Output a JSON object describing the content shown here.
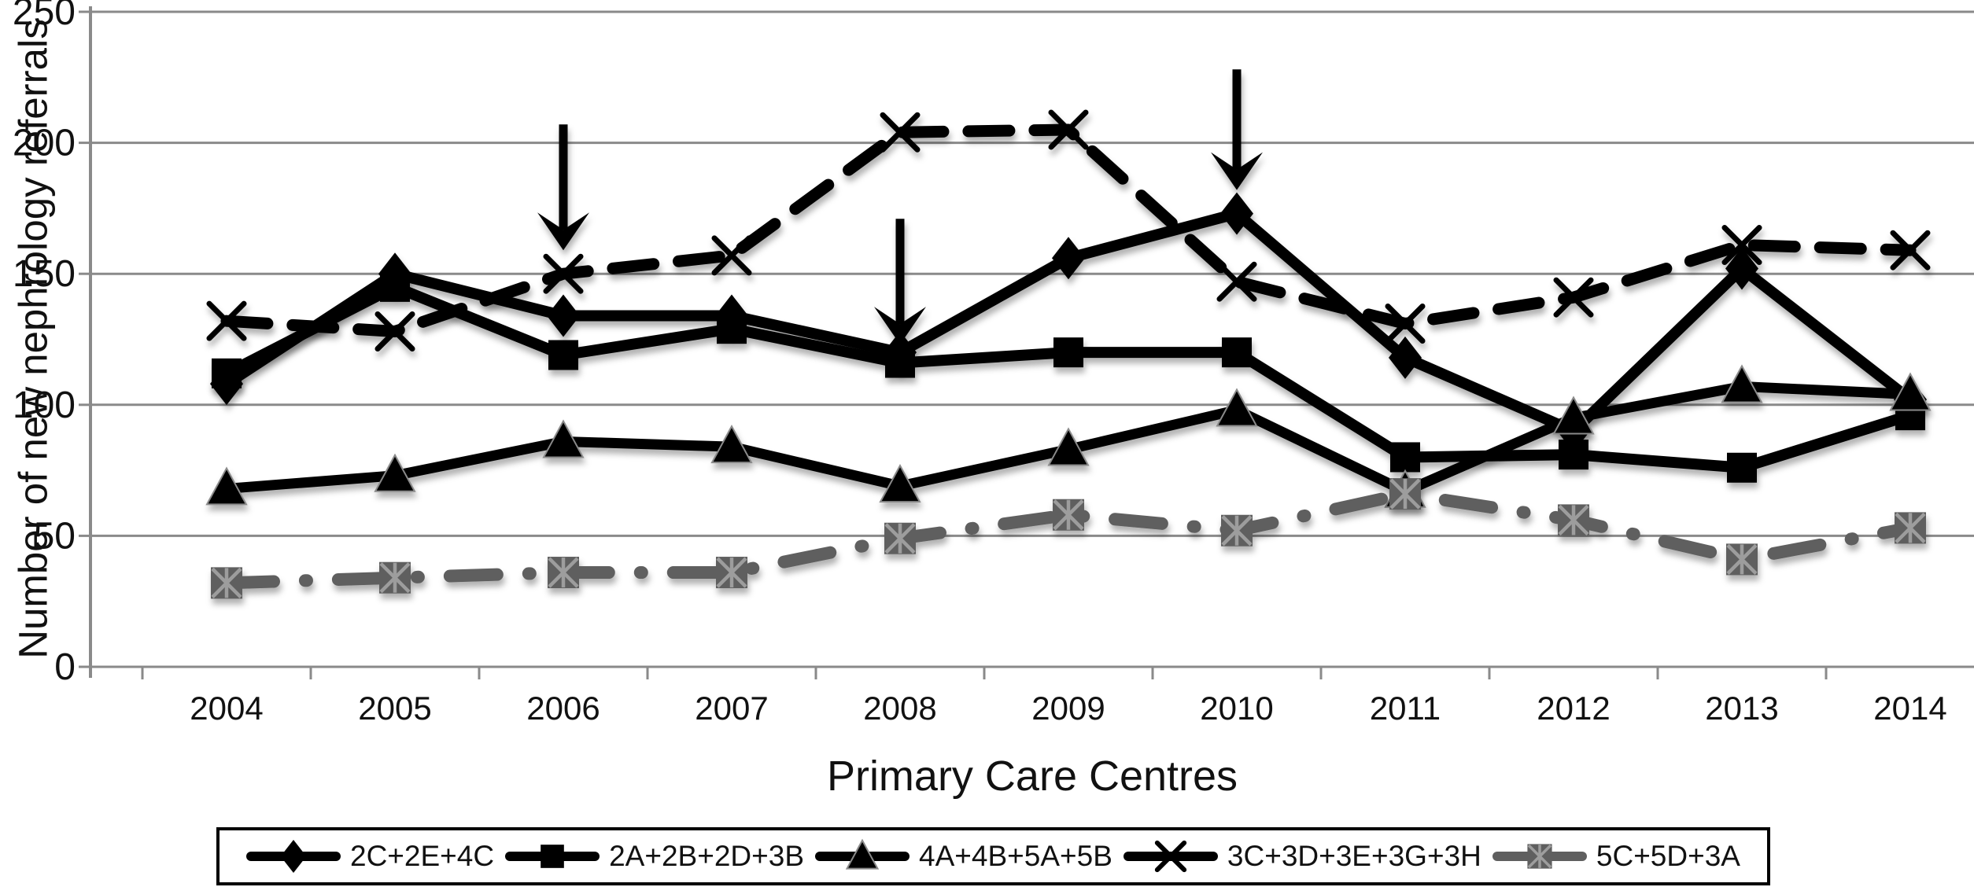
{
  "figure": {
    "background": "#ffffff"
  },
  "style": {
    "grid_color": "#8a8a8a",
    "axis_color": "#8a8a8a",
    "text_color": "#111111",
    "black": "#000000",
    "gray_series": "#5f5f5f",
    "gray_marker_inner": "#9d9d9d",
    "legend_border": "#000000"
  },
  "chart_data": {
    "type": "line",
    "title": "",
    "xlabel": "Primary Care Centres",
    "ylabel": "Number of new nephrology referrals",
    "categories": [
      "2004",
      "2005",
      "2006",
      "2007",
      "2008",
      "2009",
      "2010",
      "2011",
      "2012",
      "2013",
      "2014"
    ],
    "y_ticks": [
      0,
      50,
      100,
      150,
      200,
      250
    ],
    "ylim": [
      0,
      250
    ],
    "grid": "horizontal",
    "legend_position": "bottom",
    "series": [
      {
        "name": "2C+2E+4C",
        "marker": "diamond",
        "line": "solid",
        "color": "#000000",
        "values": [
          108,
          150,
          134,
          134,
          120,
          156,
          173,
          118,
          90,
          152,
          102
        ]
      },
      {
        "name": "2A+2B+2D+3B",
        "marker": "square",
        "line": "solid",
        "color": "#000000",
        "values": [
          112,
          145,
          119,
          129,
          116,
          120,
          120,
          80,
          81,
          76,
          96
        ]
      },
      {
        "name": "4A+4B+5A+5B",
        "marker": "triangle",
        "line": "solid",
        "color": "#000000",
        "values": [
          68,
          73,
          86,
          84,
          69,
          83,
          98,
          67,
          95,
          107,
          104
        ]
      },
      {
        "name": "3C+3D+3E+3G+3H",
        "marker": "x",
        "line": "dashed",
        "color": "#000000",
        "values": [
          132,
          128,
          150,
          157,
          204,
          205,
          147,
          131,
          141,
          161,
          159
        ]
      },
      {
        "name": "5C+5D+3A",
        "marker": "boxed-x",
        "line": "dash-dot",
        "color": "#5f5f5f",
        "values": [
          32,
          34,
          36,
          36,
          49,
          58,
          52,
          66,
          56,
          41,
          53
        ]
      }
    ],
    "annotations": [
      {
        "type": "down-arrow",
        "year": "2006",
        "value_top": 207,
        "value_tip": 159
      },
      {
        "type": "down-arrow",
        "year": "2008",
        "value_top": 171,
        "value_tip": 123
      },
      {
        "type": "down-arrow",
        "year": "2010",
        "value_top": 228,
        "value_tip": 182
      }
    ]
  }
}
